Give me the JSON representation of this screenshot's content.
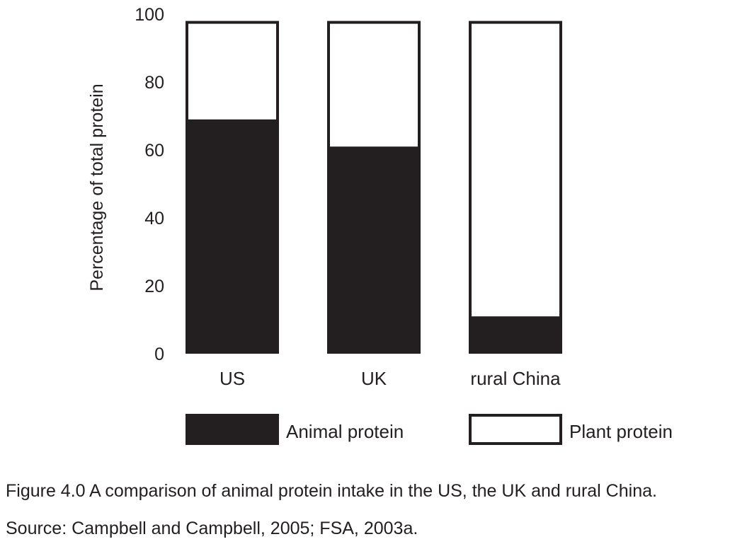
{
  "chart_data": {
    "type": "bar",
    "stacked": true,
    "categories": [
      "US",
      "UK",
      "rural China"
    ],
    "series": [
      {
        "name": "Animal protein",
        "values": [
          69,
          61,
          11
        ],
        "color": "#231f20"
      },
      {
        "name": "Plant protein",
        "values": [
          29,
          37,
          87
        ],
        "color": "#ffffff"
      }
    ],
    "ylabel": "Percentage of total protein",
    "ylim": [
      0,
      100
    ],
    "yticks": [
      "0",
      "20",
      "40",
      "60",
      "80",
      "100"
    ],
    "legend_position": "bottom",
    "grid": false
  },
  "caption": {
    "title": "Figure 4.0 A comparison of animal protein intake in the US, the UK and rural China.",
    "source": "Source: Campbell and Campbell, 2005; FSA, 2003a."
  },
  "colors": {
    "ink": "#231f20",
    "background": "#ffffff"
  }
}
